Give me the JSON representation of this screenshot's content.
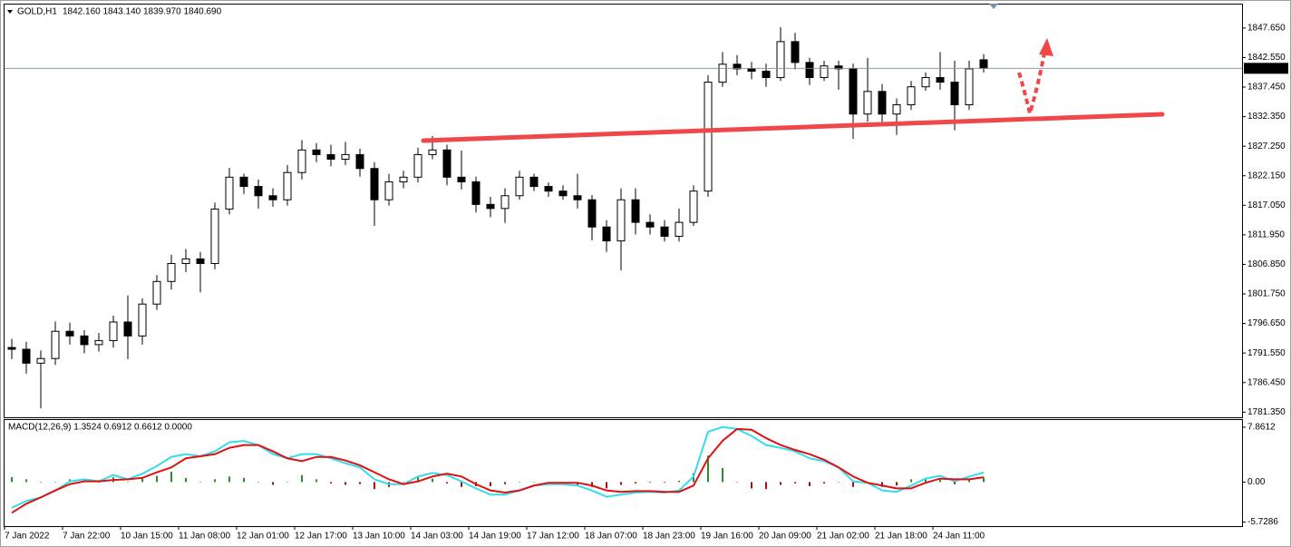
{
  "chart_data": [
    {
      "type": "candlestick",
      "title": "GOLD,H1",
      "quote": "1842.160 1843.140 1839.970 1840.690",
      "categories": [
        "7 Jan 2022",
        null,
        null,
        null,
        "7 Jan 22:00",
        null,
        null,
        null,
        "10 Jan 15:00",
        null,
        null,
        null,
        "11 Jan 08:00",
        null,
        null,
        null,
        "12 Jan 01:00",
        null,
        null,
        null,
        "12 Jan 17:00",
        null,
        null,
        null,
        "13 Jan 10:00",
        null,
        null,
        null,
        "14 Jan 03:00",
        null,
        null,
        null,
        "14 Jan 19:00",
        null,
        null,
        null,
        "17 Jan 12:00",
        null,
        null,
        null,
        "18 Jan 07:00",
        null,
        null,
        null,
        "18 Jan 23:00",
        null,
        null,
        null,
        "19 Jan 16:00",
        null,
        null,
        null,
        "20 Jan 09:00",
        null,
        null,
        null,
        "21 Jan 02:00",
        null,
        null,
        null,
        "21 Jan 18:00",
        null,
        null,
        null,
        "24 Jan 11:00",
        null,
        null,
        null
      ],
      "open": [
        1792.5,
        1792.2,
        1789.8,
        1790.6,
        1795.3,
        1794.5,
        1793.0,
        1793.7,
        1796.9,
        1794.5,
        1800.0,
        1803.9,
        1807.0,
        1807.8,
        1807.0,
        1816.4,
        1821.9,
        1820.3,
        1818.7,
        1818.0,
        1822.7,
        1826.6,
        1825.8,
        1825.0,
        1825.8,
        1823.4,
        1818.0,
        1821.1,
        1821.9,
        1825.8,
        1826.6,
        1821.9,
        1821.1,
        1817.2,
        1816.5,
        1818.7,
        1821.9,
        1820.3,
        1819.5,
        1818.7,
        1818.0,
        1813.3,
        1810.9,
        1818.0,
        1814.1,
        1813.3,
        1811.7,
        1814.1,
        1819.5,
        1838.3,
        1841.4,
        1840.6,
        1840.2,
        1839.1,
        1845.3,
        1841.7,
        1839.1,
        1841.1,
        1840.6,
        1832.8,
        1836.7,
        1832.8,
        1834.4,
        1837.5,
        1839.1,
        1838.3,
        1834.4,
        1842.16
      ],
      "high": [
        1794.0,
        1793.5,
        1792.0,
        1797.0,
        1796.8,
        1795.5,
        1795.0,
        1798.0,
        1801.5,
        1801.0,
        1805.0,
        1808.5,
        1809.5,
        1809.0,
        1817.5,
        1823.5,
        1822.5,
        1821.5,
        1820.0,
        1824.0,
        1828.3,
        1827.8,
        1827.5,
        1828.0,
        1826.8,
        1824.5,
        1822.5,
        1823.0,
        1827.0,
        1829.0,
        1827.5,
        1826.5,
        1822.0,
        1818.5,
        1820.0,
        1823.0,
        1822.5,
        1821.0,
        1820.5,
        1822.5,
        1818.8,
        1814.5,
        1820.0,
        1820.0,
        1815.5,
        1814.5,
        1816.5,
        1820.5,
        1839.5,
        1843.5,
        1843.0,
        1841.8,
        1841.5,
        1847.8,
        1846.8,
        1842.5,
        1842.0,
        1842.0,
        1841.5,
        1842.5,
        1838.0,
        1835.5,
        1838.5,
        1840.0,
        1843.5,
        1842.0,
        1842.0,
        1843.14
      ],
      "low": [
        1790.5,
        1788.0,
        1782.0,
        1789.5,
        1793.0,
        1791.5,
        1791.8,
        1792.5,
        1790.5,
        1793.0,
        1799.0,
        1802.5,
        1805.5,
        1802.0,
        1806.0,
        1815.5,
        1819.0,
        1816.5,
        1816.8,
        1817.0,
        1821.5,
        1824.5,
        1823.8,
        1824.0,
        1822.0,
        1813.5,
        1817.0,
        1820.0,
        1821.0,
        1825.0,
        1820.5,
        1819.8,
        1815.8,
        1815.0,
        1814.0,
        1818.0,
        1819.5,
        1818.5,
        1818.0,
        1816.5,
        1811.0,
        1809.0,
        1805.8,
        1812.0,
        1812.0,
        1810.8,
        1810.8,
        1813.5,
        1818.5,
        1837.5,
        1839.5,
        1838.8,
        1837.5,
        1838.5,
        1840.5,
        1837.8,
        1838.5,
        1837.0,
        1828.5,
        1831.5,
        1830.8,
        1829.2,
        1833.5,
        1836.8,
        1837.0,
        1830.0,
        1833.5,
        1839.97
      ],
      "close": [
        1792.2,
        1789.8,
        1790.6,
        1795.3,
        1794.5,
        1793.0,
        1793.7,
        1796.9,
        1794.5,
        1800.0,
        1803.9,
        1807.0,
        1807.8,
        1807.0,
        1816.4,
        1821.9,
        1820.3,
        1818.7,
        1818.0,
        1822.7,
        1826.6,
        1825.8,
        1825.0,
        1825.8,
        1823.4,
        1818.0,
        1821.1,
        1821.9,
        1825.8,
        1826.6,
        1821.9,
        1821.1,
        1817.2,
        1816.5,
        1818.7,
        1821.9,
        1820.3,
        1819.5,
        1818.7,
        1818.0,
        1813.3,
        1810.9,
        1818.0,
        1814.1,
        1813.3,
        1811.7,
        1814.1,
        1819.5,
        1838.3,
        1841.4,
        1840.6,
        1840.2,
        1839.1,
        1845.3,
        1841.7,
        1839.1,
        1841.1,
        1840.6,
        1832.8,
        1836.7,
        1832.8,
        1834.4,
        1837.5,
        1839.1,
        1838.3,
        1834.4,
        1840.6,
        1840.69
      ],
      "up_color": "#ffffff",
      "down_color": "#000000",
      "wick_color": "#000000",
      "last_price": {
        "value": 1840.69,
        "label": "1840.690"
      },
      "ylim": [
        1780.46,
        1851.7
      ],
      "yticks": [
        {
          "value": 1847.65,
          "label": "1847.650"
        },
        {
          "value": 1842.55,
          "label": "1842.550"
        },
        {
          "value": 1837.45,
          "label": "1837.450"
        },
        {
          "value": 1832.35,
          "label": "1832.350"
        },
        {
          "value": 1827.25,
          "label": "1827.250"
        },
        {
          "value": 1822.15,
          "label": "1822.150"
        },
        {
          "value": 1817.05,
          "label": "1817.050"
        },
        {
          "value": 1811.95,
          "label": "1811.950"
        },
        {
          "value": 1806.85,
          "label": "1806.850"
        },
        {
          "value": 1801.75,
          "label": "1801.750"
        },
        {
          "value": 1796.65,
          "label": "1796.650"
        },
        {
          "value": 1791.55,
          "label": "1791.550"
        },
        {
          "value": 1786.45,
          "label": "1786.450"
        },
        {
          "value": 1781.35,
          "label": "1781.350"
        }
      ]
    },
    {
      "type": "macd",
      "title": "MACD(12,26,9) 1.3524 0.6912 0.6612 0.0000",
      "series": [
        {
          "name": "MACD",
          "color": "#33dcec",
          "values": [
            -3.7,
            -2.7,
            -2.2,
            -1.2,
            0.1,
            0.4,
            0.1,
            1.0,
            0.4,
            1.2,
            2.3,
            3.6,
            4.0,
            3.7,
            4.4,
            5.7,
            5.9,
            5.3,
            4.0,
            3.4,
            4.0,
            4.0,
            3.4,
            2.7,
            2.1,
            0.4,
            -0.3,
            -0.3,
            0.8,
            1.3,
            1.0,
            0.1,
            -0.9,
            -1.8,
            -1.8,
            -1.2,
            -0.5,
            -0.3,
            -0.3,
            -0.5,
            -1.2,
            -2.1,
            -1.8,
            -1.5,
            -1.4,
            -1.5,
            -1.2,
            0.8,
            7.2,
            7.9,
            7.6,
            6.6,
            5.3,
            4.9,
            4.4,
            3.4,
            3.0,
            2.1,
            0.1,
            -0.1,
            -1.2,
            -1.4,
            -0.5,
            0.5,
            0.9,
            0.1,
            0.8,
            1.3524
          ]
        },
        {
          "name": "Signal",
          "color": "#e01010",
          "values": [
            -4.4,
            -3.1,
            -2.2,
            -1.2,
            -0.3,
            0.1,
            0.1,
            0.3,
            0.4,
            0.6,
            1.4,
            2.1,
            3.4,
            3.7,
            4.0,
            4.9,
            5.3,
            5.3,
            4.4,
            3.4,
            3.0,
            3.6,
            3.6,
            3.1,
            2.4,
            1.4,
            0.4,
            -0.3,
            0.1,
            0.8,
            1.2,
            0.8,
            -0.3,
            -1.2,
            -1.5,
            -1.2,
            -0.5,
            -0.1,
            -0.1,
            -0.1,
            -0.5,
            -1.2,
            -1.4,
            -1.3,
            -1.3,
            -1.4,
            -1.4,
            -0.5,
            3.4,
            5.9,
            7.6,
            7.5,
            6.3,
            5.3,
            4.6,
            4.0,
            3.2,
            2.1,
            0.8,
            -0.1,
            -0.5,
            -0.9,
            -0.9,
            -0.1,
            0.5,
            0.4,
            0.4,
            0.6912
          ]
        }
      ],
      "histogram": [
        0.7,
        0.4,
        0,
        0,
        0.4,
        0.3,
        0,
        0.7,
        0,
        0.6,
        0.9,
        1.5,
        0.6,
        0,
        0.4,
        0.8,
        0.6,
        0,
        -0.4,
        0,
        1.0,
        0.4,
        -0.2,
        -0.4,
        -0.3,
        -1.0,
        -0.7,
        0,
        0.7,
        0.5,
        -0.2,
        -0.7,
        -0.6,
        -0.6,
        -0.3,
        0,
        0,
        -0.2,
        -0.2,
        -0.4,
        -0.7,
        -0.9,
        -0.4,
        -0.2,
        -0.1,
        -0.1,
        0.2,
        1.3,
        3.8,
        2.0,
        0,
        -0.9,
        -1.0,
        -0.4,
        -0.2,
        -0.6,
        -0.2,
        0,
        -0.7,
        0,
        -0.7,
        -0.5,
        0.4,
        0.6,
        0.4,
        -0.3,
        0.4,
        0.6612
      ],
      "histogram_colors": {
        "up": "#2e8b2e",
        "down": "#a01010"
      },
      "ylim": [
        -6.31,
        8.89
      ],
      "yticks": [
        7.8612,
        {
          "value": 0,
          "label": "0.00"
        },
        -5.7286
      ]
    }
  ]
}
